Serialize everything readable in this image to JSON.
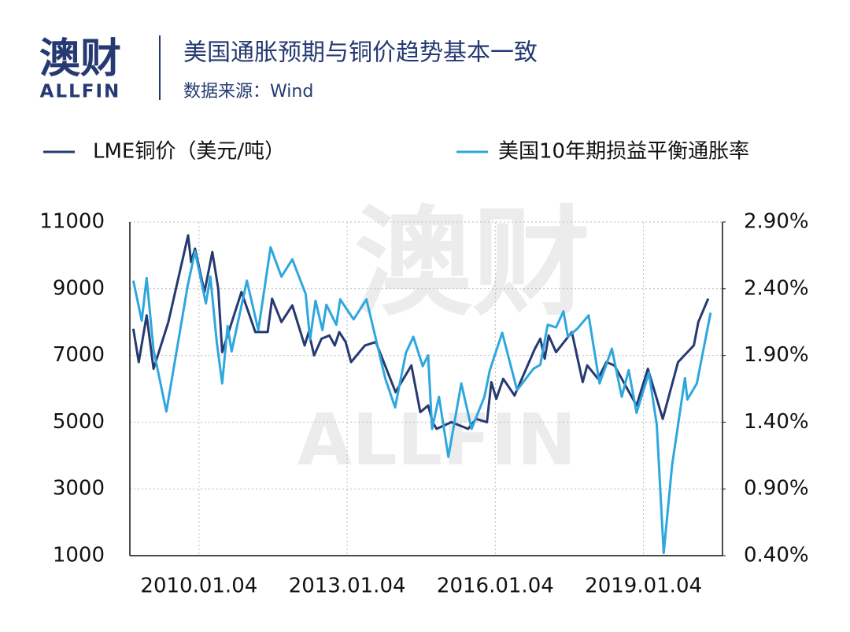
{
  "header": {
    "logo": "澳财",
    "logo_sub": "ALLFIN",
    "watermark": "澳财",
    "watermark_sub": "ALLFIN"
  },
  "chart_data": {
    "type": "line",
    "title": "美国通胀预期与铜价趋势基本一致",
    "subtitle": "数据来源：Wind",
    "xlim": [
      2008.6,
      2020.6
    ],
    "xticks": [
      {
        "value": 2010,
        "label": "2010.01.04"
      },
      {
        "value": 2013,
        "label": "2013.01.04"
      },
      {
        "value": 2016,
        "label": "2016.01.04"
      },
      {
        "value": 2019,
        "label": "2019.01.04"
      }
    ],
    "ylim": [
      1000,
      11000
    ],
    "yticks": [
      1000,
      3000,
      5000,
      7000,
      9000,
      11000
    ],
    "y2lim": [
      0.4,
      2.9
    ],
    "y2ticks": [
      {
        "value": 0.4,
        "label": "0.40%"
      },
      {
        "value": 0.9,
        "label": "0.90%"
      },
      {
        "value": 1.4,
        "label": "1.40%"
      },
      {
        "value": 1.9,
        "label": "1.90%"
      },
      {
        "value": 2.4,
        "label": "2.40%"
      },
      {
        "value": 2.9,
        "label": "2.90%"
      }
    ],
    "grid": true,
    "series": [
      {
        "name": "LME铜价（美元/吨）",
        "color": "#263a72",
        "axis": "y",
        "x": [
          2008.67,
          2008.78,
          2008.94,
          2009.08,
          2009.38,
          2009.78,
          2009.84,
          2009.92,
          2010.11,
          2010.27,
          2010.39,
          2010.47,
          2010.86,
          2011.14,
          2011.39,
          2011.48,
          2011.67,
          2011.89,
          2012.14,
          2012.22,
          2012.33,
          2012.48,
          2012.64,
          2012.75,
          2012.84,
          2012.97,
          2013.08,
          2013.36,
          2013.58,
          2013.98,
          2014.3,
          2014.48,
          2014.64,
          2014.73,
          2014.81,
          2015.11,
          2015.45,
          2015.61,
          2015.83,
          2015.92,
          2016.02,
          2016.16,
          2016.39,
          2016.8,
          2016.91,
          2017.0,
          2017.08,
          2017.23,
          2017.55,
          2017.77,
          2017.86,
          2018.08,
          2018.25,
          2018.41,
          2018.86,
          2019.09,
          2019.39,
          2019.7,
          2020.02,
          2020.11,
          2020.31
        ],
        "values": [
          7800,
          6800,
          8200,
          6600,
          8000,
          10600,
          9800,
          10200,
          8900,
          10100,
          9000,
          7100,
          8900,
          7700,
          7700,
          8700,
          8000,
          8500,
          7300,
          7700,
          7000,
          7500,
          7600,
          7300,
          7700,
          7400,
          6800,
          7300,
          7400,
          5900,
          6700,
          5300,
          5500,
          5000,
          4800,
          5000,
          4800,
          5100,
          5000,
          6200,
          5700,
          6300,
          5800,
          7200,
          7500,
          6900,
          7600,
          7100,
          7700,
          6200,
          6700,
          6300,
          6800,
          6700,
          5500,
          6600,
          5100,
          6800,
          7300,
          8000,
          8700
        ]
      },
      {
        "name": "美国10年期损益平衡通胀率",
        "color": "#2ea7de",
        "axis": "y2",
        "x": [
          2008.67,
          2008.84,
          2008.94,
          2009.08,
          2009.34,
          2009.77,
          2009.92,
          2010.14,
          2010.23,
          2010.36,
          2010.47,
          2010.58,
          2010.66,
          2010.97,
          2011.2,
          2011.45,
          2011.67,
          2011.89,
          2012.16,
          2012.25,
          2012.36,
          2012.5,
          2012.58,
          2012.78,
          2012.86,
          2013.13,
          2013.39,
          2013.77,
          2013.97,
          2014.19,
          2014.34,
          2014.53,
          2014.64,
          2014.72,
          2014.86,
          2015.05,
          2015.31,
          2015.52,
          2015.78,
          2015.89,
          2016.14,
          2016.44,
          2016.77,
          2016.91,
          2017.06,
          2017.23,
          2017.38,
          2017.47,
          2017.66,
          2017.89,
          2018.11,
          2018.36,
          2018.56,
          2018.7,
          2018.86,
          2019.11,
          2019.27,
          2019.41,
          2019.58,
          2019.84,
          2019.89,
          2020.08,
          2020.36
        ],
        "values": [
          2.46,
          2.16,
          2.48,
          1.94,
          1.48,
          2.42,
          2.68,
          2.29,
          2.49,
          2.0,
          1.69,
          2.12,
          1.93,
          2.46,
          2.09,
          2.71,
          2.49,
          2.62,
          2.36,
          2.02,
          2.31,
          2.09,
          2.28,
          2.13,
          2.32,
          2.17,
          2.32,
          1.73,
          1.51,
          1.92,
          2.04,
          1.82,
          1.9,
          1.35,
          1.59,
          1.14,
          1.69,
          1.35,
          1.59,
          1.79,
          2.07,
          1.64,
          1.8,
          1.83,
          2.13,
          2.11,
          2.23,
          2.04,
          2.1,
          2.2,
          1.69,
          1.95,
          1.59,
          1.79,
          1.47,
          1.77,
          1.38,
          0.42,
          1.08,
          1.73,
          1.57,
          1.69,
          2.22
        ]
      }
    ]
  }
}
